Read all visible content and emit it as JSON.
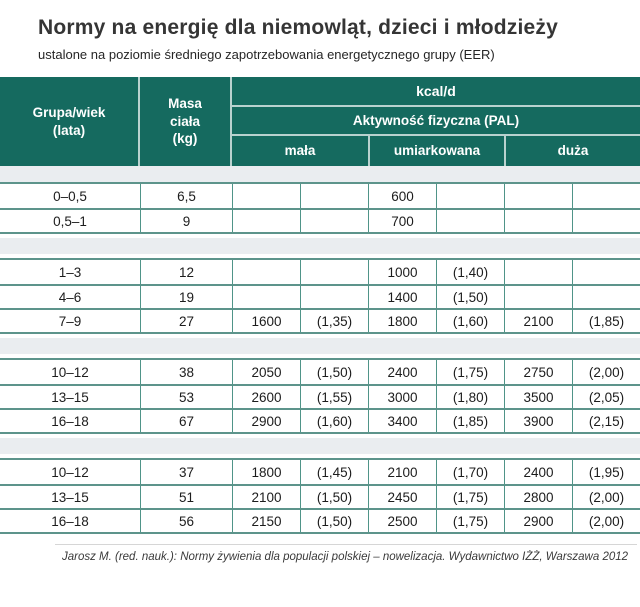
{
  "title": "Normy na energię dla niemowląt, dzieci i młodzieży",
  "subtitle": "ustalone na poziomie średniego zapotrzebowania energetycznego grupy (EER)",
  "table": {
    "header": {
      "group": [
        "Grupa/wiek",
        "(lata)"
      ],
      "mass": [
        "Masa",
        "ciała",
        "(kg)"
      ],
      "kcal": "kcal/d",
      "pal": "Aktywność fizyczna (PAL)",
      "levels": [
        "mała",
        "umiarkowana",
        "duża"
      ]
    },
    "columns": [
      "Grupa/wiek (lata)",
      "Masa ciała (kg)",
      "mała kcal",
      "mała PAL",
      "umiarkowana kcal",
      "umiarkowana PAL",
      "duża kcal",
      "duża PAL"
    ],
    "sections": [
      {
        "rows": [
          [
            "0–0,5",
            "6,5",
            "",
            "",
            "600",
            "",
            "",
            ""
          ],
          [
            "0,5–1",
            "9",
            "",
            "",
            "700",
            "",
            "",
            ""
          ]
        ]
      },
      {
        "rows": [
          [
            "1–3",
            "12",
            "",
            "",
            "1000",
            "(1,40)",
            "",
            ""
          ],
          [
            "4–6",
            "19",
            "",
            "",
            "1400",
            "(1,50)",
            "",
            ""
          ],
          [
            "7–9",
            "27",
            "1600",
            "(1,35)",
            "1800",
            "(1,60)",
            "2100",
            "(1,85)"
          ]
        ]
      },
      {
        "rows": [
          [
            "10–12",
            "38",
            "2050",
            "(1,50)",
            "2400",
            "(1,75)",
            "2750",
            "(2,00)"
          ],
          [
            "13–15",
            "53",
            "2600",
            "(1,55)",
            "3000",
            "(1,80)",
            "3500",
            "(2,05)"
          ],
          [
            "16–18",
            "67",
            "2900",
            "(1,60)",
            "3400",
            "(1,85)",
            "3900",
            "(2,15)"
          ]
        ]
      },
      {
        "rows": [
          [
            "10–12",
            "37",
            "1800",
            "(1,45)",
            "2100",
            "(1,70)",
            "2400",
            "(1,95)"
          ],
          [
            "13–15",
            "51",
            "2100",
            "(1,50)",
            "2450",
            "(1,75)",
            "2800",
            "(2,00)"
          ],
          [
            "16–18",
            "56",
            "2150",
            "(1,50)",
            "2500",
            "(1,75)",
            "2900",
            "(2,00)"
          ]
        ]
      }
    ]
  },
  "footer": "Jarosz M. (red. nauk.): Normy żywienia dla populacji polskiej – nowelizacja. Wydawnictwo IŻŻ, Warszawa 2012",
  "colors": {
    "header_teal": "#156a5f",
    "vertical_grid": "#4f9488",
    "horizontal_grid": "#5d948b",
    "separator_band": "#eaedf0",
    "footer_rule": "#d6d6d6"
  }
}
